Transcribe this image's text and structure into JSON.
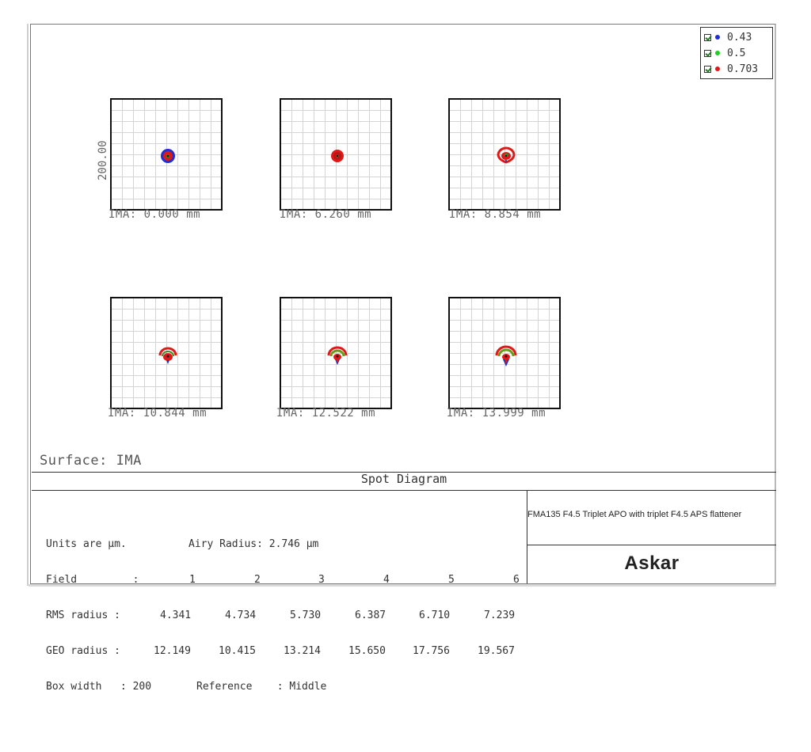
{
  "legend": {
    "items": [
      {
        "label": "0.43",
        "color": "#1f2fd0",
        "checked": true
      },
      {
        "label": "0.5",
        "color": "#22cc22",
        "checked": true
      },
      {
        "label": "0.703",
        "color": "#e01818",
        "checked": true
      }
    ]
  },
  "plots": [
    {
      "label": "IMA: 0.000 mm",
      "spot": "round"
    },
    {
      "label": "IMA: 6.260 mm",
      "spot": "small"
    },
    {
      "label": "IMA: 8.854 mm",
      "spot": "coma1"
    },
    {
      "label": "IMA: 10.844 mm",
      "spot": "coma2"
    },
    {
      "label": "IMA: 12.522 mm",
      "spot": "coma3"
    },
    {
      "label": "IMA: 13.999 mm",
      "spot": "coma4"
    }
  ],
  "scale_label": "200.00",
  "surface": "Surface: IMA",
  "title": "Spot Diagram",
  "info": {
    "line1_units": "Units are µm.",
    "line1_airy": "Airy Radius: 2.746 µm",
    "field_label": "Field         :",
    "fields": [
      "1",
      "2",
      "3",
      "4",
      "5",
      "6"
    ],
    "rms_label": "RMS radius :",
    "rms": [
      "4.341",
      "4.734",
      "5.730",
      "6.387",
      "6.710",
      "7.239"
    ],
    "geo_label": "GEO radius :",
    "geo": [
      "12.149",
      "10.415",
      "13.214",
      "15.650",
      "17.756",
      "19.567"
    ],
    "box_width": "Box width   : 200",
    "reference": "Reference    : Middle"
  },
  "description": "FMA135 F4.5 Triplet APO with triplet F4.5 APS flattener",
  "logo": "Askar"
}
